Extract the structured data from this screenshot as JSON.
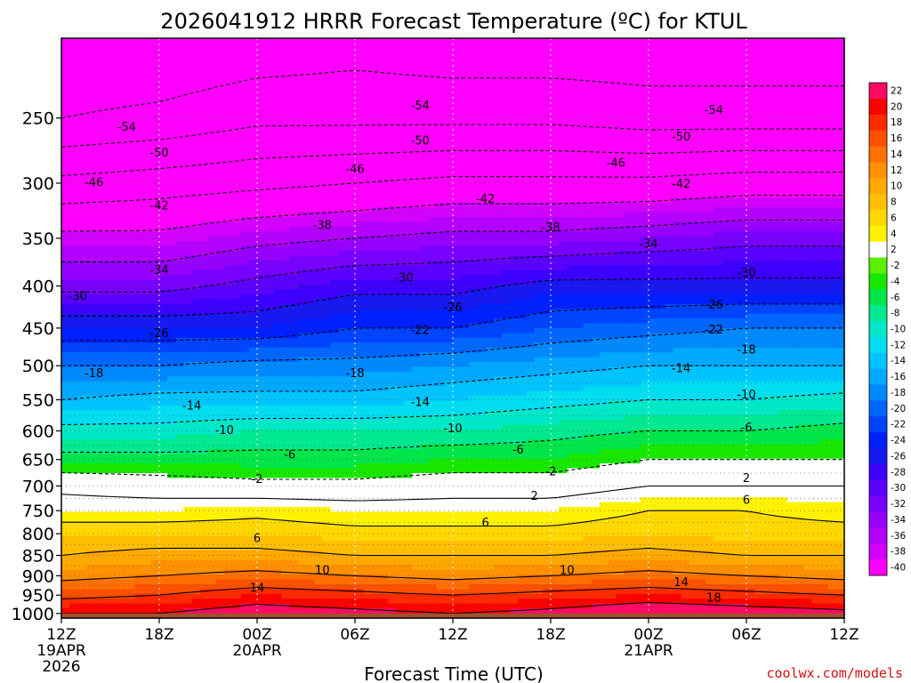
{
  "chart_data": {
    "type": "heatmap",
    "title": "2026041912 HRRR Forecast Temperature (ºC) for KTUL",
    "xlabel": "Forecast Time (UTC)",
    "ylabel": "",
    "credit": "coolwx.com/models",
    "y_ticks": [
      250,
      300,
      350,
      400,
      450,
      500,
      550,
      600,
      650,
      700,
      750,
      800,
      850,
      900,
      950,
      1000
    ],
    "ylim": [
      1013,
      200
    ],
    "x_ticks": [
      {
        "hour": 0,
        "label": "12Z",
        "sub1": "19APR",
        "sub2": "2026"
      },
      {
        "hour": 6,
        "label": "18Z",
        "sub1": "",
        "sub2": ""
      },
      {
        "hour": 12,
        "label": "00Z",
        "sub1": "20APR",
        "sub2": ""
      },
      {
        "hour": 18,
        "label": "06Z",
        "sub1": "",
        "sub2": ""
      },
      {
        "hour": 24,
        "label": "12Z",
        "sub1": "",
        "sub2": ""
      },
      {
        "hour": 30,
        "label": "18Z",
        "sub1": "",
        "sub2": ""
      },
      {
        "hour": 36,
        "label": "00Z",
        "sub1": "21APR",
        "sub2": ""
      },
      {
        "hour": 42,
        "label": "06Z",
        "sub1": "",
        "sub2": ""
      },
      {
        "hour": 48,
        "label": "12Z",
        "sub1": "",
        "sub2": ""
      }
    ],
    "xlim": [
      0,
      48
    ],
    "legend_labels": [
      "22",
      "20",
      "18",
      "16",
      "14",
      "12",
      "10",
      "8",
      "6",
      "4",
      "2",
      "-2",
      "-4",
      "-6",
      "-8",
      "-10",
      "-12",
      "-14",
      "-16",
      "-18",
      "-20",
      "-22",
      "-24",
      "-26",
      "-28",
      "-30",
      "-32",
      "-34",
      "-36",
      "-38",
      "-40"
    ],
    "legend_colors": [
      "#ff0a64",
      "#ff0000",
      "#ff2a00",
      "#ff5000",
      "#ff7000",
      "#ff9000",
      "#ffa800",
      "#ffbf00",
      "#ffd800",
      "#fff200",
      "#ffffff",
      "#5cf000",
      "#18e800",
      "#00e64a",
      "#00e890",
      "#00e8c8",
      "#00dcf0",
      "#00c4ff",
      "#00a8ff",
      "#0088ff",
      "#0066ff",
      "#0044ff",
      "#0020ff",
      "#1818f0",
      "#3d00ff",
      "#5a00ff",
      "#7800ff",
      "#9600ff",
      "#b400ff",
      "#d200ff",
      "#ff00ff"
    ],
    "levels": [
      1000,
      950,
      900,
      850,
      800,
      750,
      700,
      650,
      600,
      550,
      500,
      450,
      400,
      350,
      300,
      250,
      200
    ],
    "hours": [
      0,
      6,
      12,
      18,
      24,
      30,
      36,
      42,
      48
    ],
    "temperature_grid": [
      [
        22,
        22,
        24,
        23,
        22,
        23,
        25,
        24,
        23
      ],
      [
        17,
        18,
        20,
        19,
        18,
        19,
        20,
        19,
        18
      ],
      [
        13,
        14,
        15,
        14,
        13,
        14,
        15,
        14,
        13
      ],
      [
        10,
        11,
        11,
        10,
        10,
        10,
        11,
        10,
        10
      ],
      [
        8,
        8,
        8,
        7,
        7,
        7,
        8,
        7,
        7
      ],
      [
        4,
        4,
        5,
        4,
        4,
        4,
        6,
        6,
        5
      ],
      [
        1,
        0,
        -1,
        -1,
        0,
        0,
        2,
        2,
        2
      ],
      [
        -5,
        -5,
        -5,
        -5,
        -4,
        -4,
        -2,
        -2,
        -2
      ],
      [
        -9,
        -9,
        -8,
        -8,
        -8,
        -7,
        -6,
        -6,
        -5
      ],
      [
        -14,
        -13,
        -13,
        -13,
        -12,
        -11,
        -10,
        -10,
        -9
      ],
      [
        -18,
        -18,
        -17,
        -17,
        -16,
        -15,
        -14,
        -14,
        -14
      ],
      [
        -24,
        -24,
        -24,
        -22,
        -22,
        -20,
        -19,
        -18,
        -18
      ],
      [
        -31,
        -31,
        -29,
        -27,
        -27,
        -25,
        -25,
        -25,
        -25
      ],
      [
        -37,
        -37,
        -35,
        -34,
        -33,
        -33,
        -32,
        -31,
        -31
      ],
      [
        -45,
        -44,
        -43,
        -42,
        -41,
        -41,
        -41,
        -40,
        -40
      ],
      [
        -54,
        -53,
        -51,
        -51,
        -51,
        -51,
        -52,
        -52,
        -52
      ],
      [
        -58,
        -58,
        -57,
        -56,
        -57,
        -57,
        -57,
        -57,
        -57
      ]
    ],
    "contour_labels": [
      {
        "text": "-54",
        "hour": 4,
        "p": 256
      },
      {
        "text": "-54",
        "hour": 22,
        "p": 241
      },
      {
        "text": "-54",
        "hour": 40,
        "p": 244
      },
      {
        "text": "-50",
        "hour": 6,
        "p": 275
      },
      {
        "text": "-50",
        "hour": 22,
        "p": 266
      },
      {
        "text": "-50",
        "hour": 38,
        "p": 263
      },
      {
        "text": "-46",
        "hour": 2,
        "p": 299
      },
      {
        "text": "-46",
        "hour": 18,
        "p": 288
      },
      {
        "text": "-46",
        "hour": 34,
        "p": 283
      },
      {
        "text": "-42",
        "hour": 6,
        "p": 319
      },
      {
        "text": "-42",
        "hour": 26,
        "p": 313
      },
      {
        "text": "-42",
        "hour": 38,
        "p": 300
      },
      {
        "text": "-38",
        "hour": 16,
        "p": 337
      },
      {
        "text": "-38",
        "hour": 30,
        "p": 339
      },
      {
        "text": "-34",
        "hour": 6,
        "p": 382
      },
      {
        "text": "-34",
        "hour": 36,
        "p": 355
      },
      {
        "text": "-30",
        "hour": 1,
        "p": 411
      },
      {
        "text": "-30",
        "hour": 21,
        "p": 390
      },
      {
        "text": "-30",
        "hour": 42,
        "p": 385
      },
      {
        "text": "-26",
        "hour": 6,
        "p": 456
      },
      {
        "text": "-26",
        "hour": 24,
        "p": 424
      },
      {
        "text": "-26",
        "hour": 40,
        "p": 421
      },
      {
        "text": "-22",
        "hour": 22,
        "p": 452
      },
      {
        "text": "-22",
        "hour": 40,
        "p": 451
      },
      {
        "text": "-18",
        "hour": 2,
        "p": 510
      },
      {
        "text": "-18",
        "hour": 18,
        "p": 510
      },
      {
        "text": "-18",
        "hour": 42,
        "p": 477
      },
      {
        "text": "-14",
        "hour": 8,
        "p": 558
      },
      {
        "text": "-14",
        "hour": 22,
        "p": 553
      },
      {
        "text": "-14",
        "hour": 38,
        "p": 503
      },
      {
        "text": "-10",
        "hour": 10,
        "p": 598
      },
      {
        "text": "-10",
        "hour": 24,
        "p": 595
      },
      {
        "text": "-10",
        "hour": 42,
        "p": 541
      },
      {
        "text": "-6",
        "hour": 14,
        "p": 640
      },
      {
        "text": "-6",
        "hour": 28,
        "p": 631
      },
      {
        "text": "-6",
        "hour": 42,
        "p": 593
      },
      {
        "text": "-2",
        "hour": 12,
        "p": 685
      },
      {
        "text": "-2",
        "hour": 30,
        "p": 671
      },
      {
        "text": "2",
        "hour": 29,
        "p": 719
      },
      {
        "text": "2",
        "hour": 42,
        "p": 684
      },
      {
        "text": "6",
        "hour": 12,
        "p": 809
      },
      {
        "text": "6",
        "hour": 26,
        "p": 774
      },
      {
        "text": "6",
        "hour": 42,
        "p": 727
      },
      {
        "text": "10",
        "hour": 16,
        "p": 885
      },
      {
        "text": "10",
        "hour": 31,
        "p": 885
      },
      {
        "text": "14",
        "hour": 12,
        "p": 930
      },
      {
        "text": "14",
        "hour": 38,
        "p": 915
      },
      {
        "text": "18",
        "hour": 40,
        "p": 955
      }
    ]
  }
}
